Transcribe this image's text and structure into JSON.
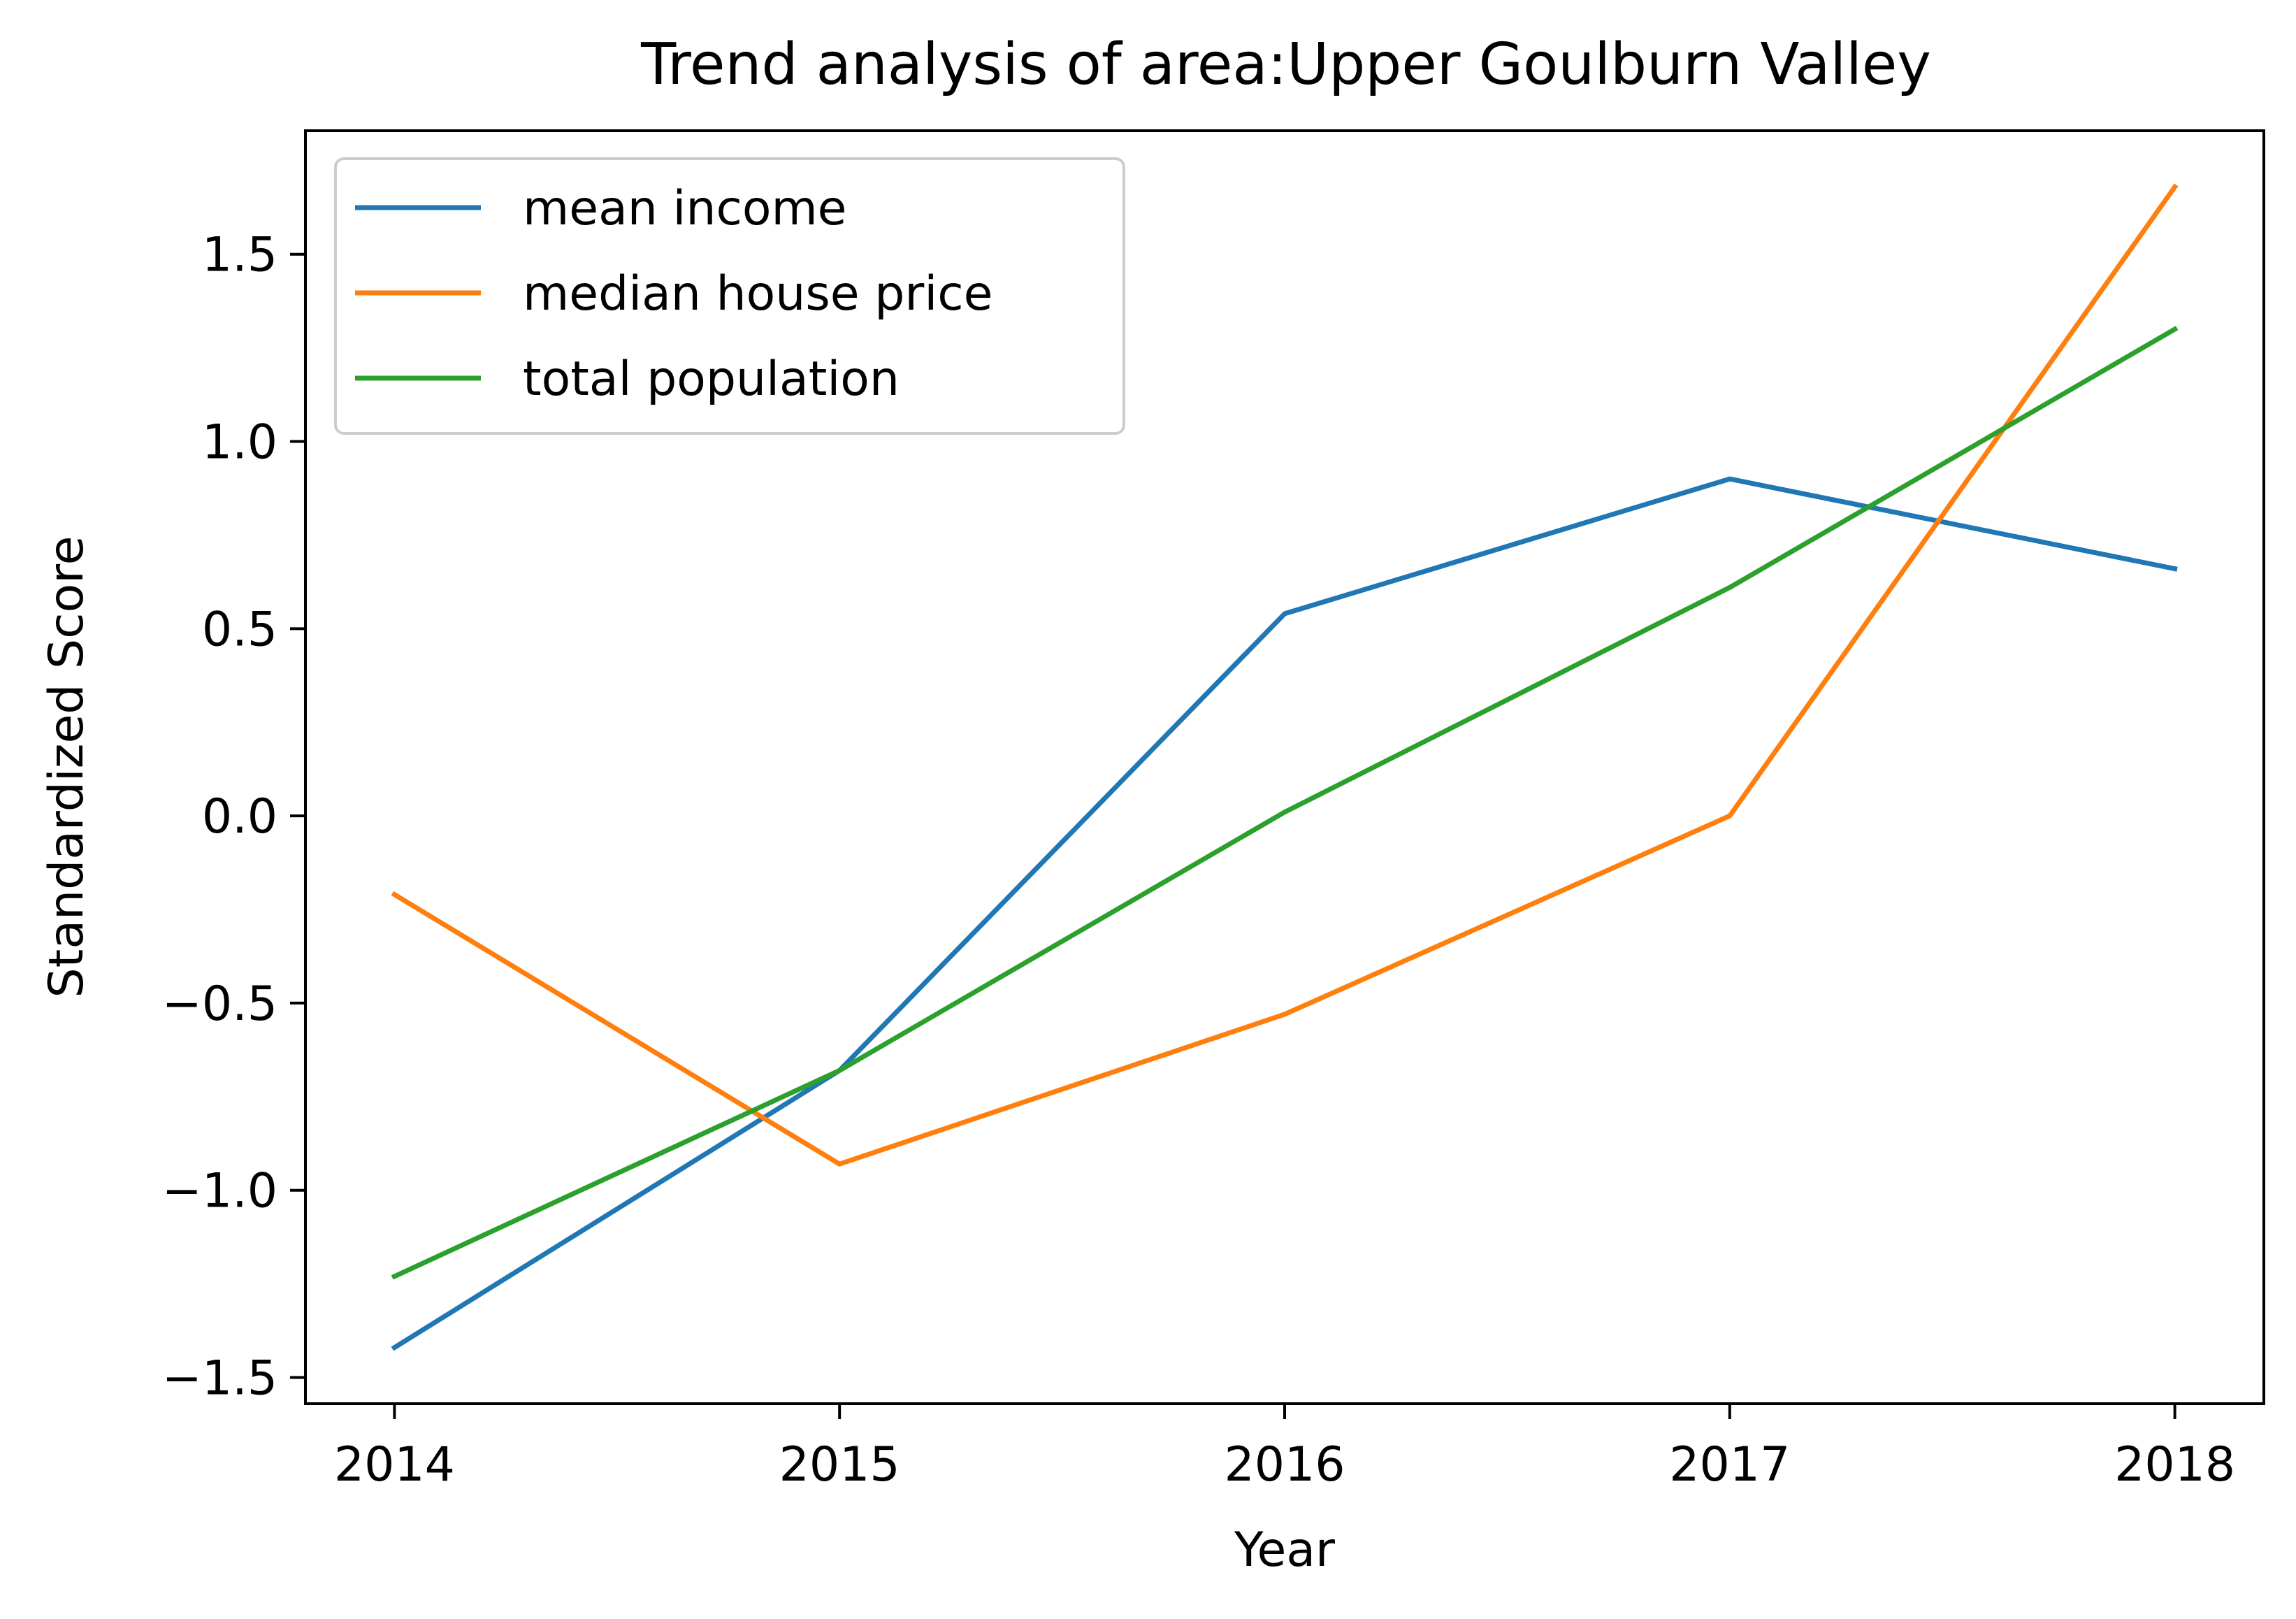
{
  "chart_data": {
    "type": "line",
    "title": "Trend analysis of area:Upper Goulburn Valley",
    "xlabel": "Year",
    "ylabel": "Standardized Score",
    "x": [
      2014,
      2015,
      2016,
      2017,
      2018
    ],
    "x_tick_labels": [
      "2014",
      "2015",
      "2016",
      "2017",
      "2018"
    ],
    "y_ticks": [
      -1.5,
      -1.0,
      -0.5,
      0.0,
      0.5,
      1.0,
      1.5
    ],
    "y_tick_labels": [
      "−1.5",
      "−1.0",
      "−0.5",
      "0.0",
      "0.5",
      "1.0",
      "1.5"
    ],
    "xlim": [
      2013.8,
      2018.2
    ],
    "ylim": [
      -1.57,
      1.83
    ],
    "grid": false,
    "legend_position": "upper-left",
    "series": [
      {
        "name": "mean income",
        "color": "#1f77b4",
        "values": [
          -1.42,
          -0.68,
          0.54,
          0.9,
          0.66
        ]
      },
      {
        "name": "median house price",
        "color": "#ff7f0e",
        "values": [
          -0.21,
          -0.93,
          -0.53,
          0.0,
          1.68
        ]
      },
      {
        "name": "total population",
        "color": "#2ca02c",
        "values": [
          -1.23,
          -0.68,
          0.01,
          0.61,
          1.3
        ]
      }
    ]
  }
}
